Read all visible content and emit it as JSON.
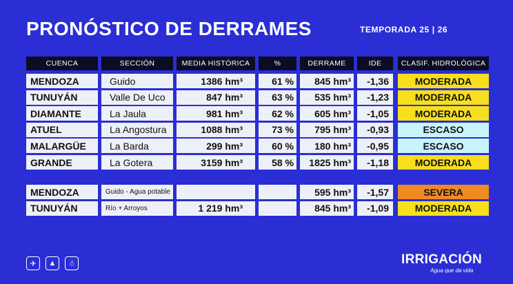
{
  "title": "PRONÓSTICO DE DERRAMES",
  "season": "TEMPORADA 25 | 26",
  "headers": {
    "cuenca": "CUENCA",
    "seccion": "SECCIÓN",
    "media": "MEDIA HISTÓRICA",
    "pct": "%",
    "derrame": "DERRAME",
    "ide": "IDE",
    "clasif": "CLASIF. HIDROLÓGICA"
  },
  "rows": [
    {
      "cuenca": "MENDOZA",
      "seccion": "Guido",
      "media": "1386  hm³",
      "pct": "61 %",
      "derrame": "845  hm³",
      "ide": "-1,36",
      "clasif": "MODERADA",
      "color": "#f7df1e"
    },
    {
      "cuenca": "TUNUYÁN",
      "seccion": "Valle De Uco",
      "media": "847  hm³",
      "pct": "63 %",
      "derrame": "535  hm³",
      "ide": "-1,23",
      "clasif": "MODERADA",
      "color": "#f7df1e"
    },
    {
      "cuenca": "DIAMANTE",
      "seccion": "La Jaula",
      "media": "981  hm³",
      "pct": "62 %",
      "derrame": "605  hm³",
      "ide": "-1,05",
      "clasif": "MODERADA",
      "color": "#f7df1e"
    },
    {
      "cuenca": "ATUEL",
      "seccion": "La Angostura",
      "media": "1088  hm³",
      "pct": "73 %",
      "derrame": "795  hm³",
      "ide": "-0,93",
      "clasif": "ESCASO",
      "color": "#c8f4fb"
    },
    {
      "cuenca": "MALARGÜE",
      "seccion": "La Barda",
      "media": "299  hm³",
      "pct": "60 %",
      "derrame": "180  hm³",
      "ide": "-0,95",
      "clasif": "ESCASO",
      "color": "#c8f4fb"
    },
    {
      "cuenca": "GRANDE",
      "seccion": "La Gotera",
      "media": "3159  hm³",
      "pct": "58 %",
      "derrame": "1825  hm³",
      "ide": "-1,18",
      "clasif": "MODERADA",
      "color": "#f7df1e"
    }
  ],
  "extra_rows": [
    {
      "cuenca": "MENDOZA",
      "seccion": "Guido - Agua potable",
      "media": "",
      "pct": "",
      "derrame": "595  hm³",
      "ide": "-1,57",
      "clasif": "SEVERA",
      "color": "#f08a23"
    },
    {
      "cuenca": "TUNUYÁN",
      "seccion": "Río + Arroyos",
      "media": "1 219  hm³",
      "pct": "",
      "derrame": "845  hm³",
      "ide": "-1,09",
      "clasif": "MODERADA",
      "color": "#f7df1e"
    }
  ],
  "footer_icons": [
    "helicopter-icon",
    "mountain-icon",
    "hiker-icon"
  ],
  "logo": "IRRIGACIÓN",
  "slogan": "Agua que da vida"
}
